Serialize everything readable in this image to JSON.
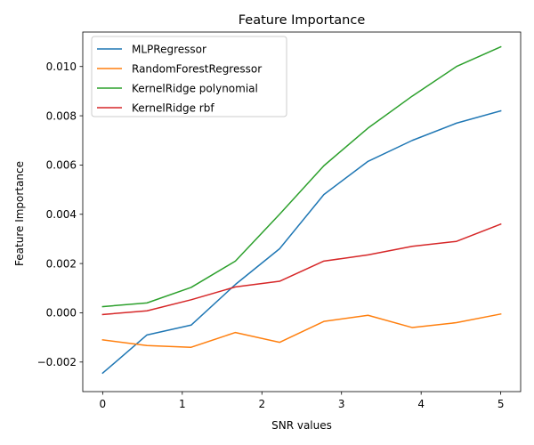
{
  "chart_data": {
    "type": "line",
    "title": "Feature Importance",
    "xlabel": "SNR values",
    "ylabel": "Feature Importance",
    "xlim": [
      -0.25,
      5.25
    ],
    "ylim": [
      -0.0032,
      0.0114
    ],
    "xticks": [
      0,
      1,
      2,
      3,
      4,
      5
    ],
    "xtick_labels": [
      "0",
      "1",
      "2",
      "3",
      "4",
      "5"
    ],
    "yticks": [
      -0.002,
      0.0,
      0.002,
      0.004,
      0.006,
      0.008,
      0.01
    ],
    "ytick_labels": [
      "−0.002",
      "0.000",
      "0.002",
      "0.004",
      "0.006",
      "0.008",
      "0.010"
    ],
    "grid": false,
    "legend_position": "top-left",
    "x": [
      0,
      0.556,
      1.111,
      1.667,
      2.222,
      2.778,
      3.333,
      3.889,
      4.444,
      5.0
    ],
    "series": [
      {
        "name": "MLPRegressor",
        "color": "#1f77b4",
        "values": [
          -0.00245,
          -0.0009,
          -0.0005,
          0.00115,
          0.0026,
          0.0048,
          0.00615,
          0.007,
          0.0077,
          0.0082
        ]
      },
      {
        "name": "RandomForestRegressor",
        "color": "#ff7f0e",
        "values": [
          -0.0011,
          -0.00133,
          -0.0014,
          -0.0008,
          -0.0012,
          -0.00035,
          -0.0001,
          -0.0006,
          -0.0004,
          -5e-05
        ]
      },
      {
        "name": "KernelRidge polynomial",
        "color": "#2ca02c",
        "values": [
          0.00025,
          0.0004,
          0.00103,
          0.0021,
          0.004,
          0.00597,
          0.0075,
          0.0088,
          0.01,
          0.0108
        ]
      },
      {
        "name": "KernelRidge rbf",
        "color": "#d62728",
        "values": [
          -7e-05,
          8e-05,
          0.00053,
          0.00105,
          0.00128,
          0.0021,
          0.00235,
          0.0027,
          0.0029,
          0.0036
        ]
      }
    ]
  }
}
